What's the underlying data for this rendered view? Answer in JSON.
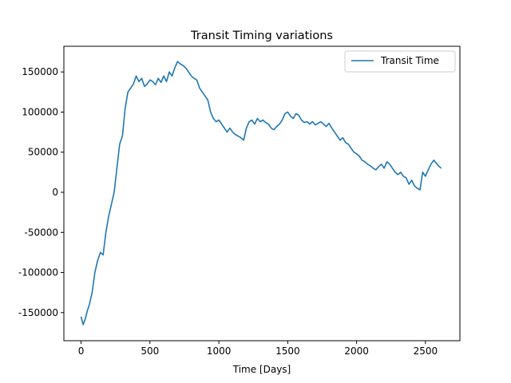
{
  "chart_data": {
    "type": "line",
    "title": "Transit Timing variations",
    "xlabel": "Time [Days]",
    "ylabel": "",
    "xlim": [
      -125,
      2750
    ],
    "ylim": [
      -185000,
      182000
    ],
    "xticks": [
      0,
      500,
      1000,
      1500,
      2000,
      2500
    ],
    "yticks": [
      -150000,
      -100000,
      -50000,
      0,
      50000,
      100000,
      150000
    ],
    "grid": false,
    "legend": "top-right",
    "series": [
      {
        "name": "Transit Time",
        "color": "#1f77b4",
        "x": [
          0,
          15,
          30,
          45,
          60,
          80,
          100,
          120,
          140,
          160,
          180,
          200,
          220,
          240,
          260,
          280,
          300,
          320,
          340,
          360,
          380,
          400,
          420,
          440,
          460,
          480,
          500,
          520,
          540,
          560,
          580,
          600,
          620,
          640,
          660,
          680,
          700,
          720,
          740,
          760,
          780,
          800,
          820,
          840,
          860,
          880,
          900,
          920,
          940,
          960,
          980,
          1000,
          1020,
          1040,
          1060,
          1080,
          1100,
          1120,
          1140,
          1160,
          1180,
          1200,
          1220,
          1240,
          1260,
          1280,
          1300,
          1320,
          1340,
          1360,
          1380,
          1400,
          1420,
          1440,
          1460,
          1480,
          1500,
          1520,
          1540,
          1560,
          1580,
          1600,
          1620,
          1640,
          1660,
          1680,
          1700,
          1720,
          1740,
          1760,
          1780,
          1800,
          1820,
          1840,
          1860,
          1880,
          1900,
          1920,
          1940,
          1960,
          1980,
          2000,
          2020,
          2040,
          2060,
          2080,
          2100,
          2120,
          2140,
          2160,
          2180,
          2200,
          2220,
          2240,
          2260,
          2280,
          2300,
          2320,
          2340,
          2360,
          2380,
          2400,
          2420,
          2440,
          2460,
          2480,
          2500,
          2520,
          2540,
          2560,
          2580,
          2600,
          2615
        ],
        "values": [
          -155000,
          -165000,
          -158000,
          -148000,
          -140000,
          -125000,
          -100000,
          -85000,
          -75000,
          -78000,
          -50000,
          -30000,
          -15000,
          0,
          30000,
          60000,
          70000,
          105000,
          125000,
          130000,
          135000,
          145000,
          138000,
          142000,
          132000,
          135000,
          140000,
          138000,
          134000,
          142000,
          137000,
          145000,
          138000,
          150000,
          145000,
          155000,
          163000,
          160000,
          158000,
          155000,
          150000,
          145000,
          142000,
          140000,
          130000,
          125000,
          120000,
          115000,
          100000,
          92000,
          88000,
          90000,
          85000,
          80000,
          75000,
          80000,
          75000,
          72000,
          70000,
          68000,
          65000,
          80000,
          88000,
          90000,
          85000,
          92000,
          88000,
          90000,
          87000,
          85000,
          80000,
          78000,
          82000,
          85000,
          90000,
          98000,
          100000,
          95000,
          92000,
          98000,
          96000,
          90000,
          87000,
          88000,
          85000,
          88000,
          84000,
          86000,
          88000,
          85000,
          82000,
          86000,
          80000,
          75000,
          70000,
          65000,
          68000,
          62000,
          60000,
          55000,
          50000,
          48000,
          45000,
          40000,
          38000,
          35000,
          33000,
          30000,
          28000,
          32000,
          35000,
          30000,
          38000,
          35000,
          30000,
          25000,
          22000,
          25000,
          20000,
          18000,
          10000,
          15000,
          8000,
          5000,
          3000,
          25000,
          20000,
          28000,
          35000,
          40000,
          36000,
          32000,
          30000
        ]
      }
    ]
  }
}
